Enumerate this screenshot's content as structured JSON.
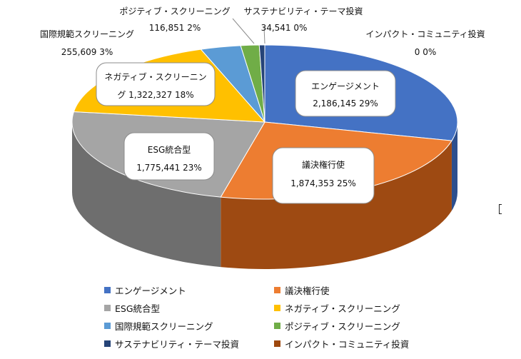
{
  "chart_data": {
    "type": "pie",
    "style": "3d",
    "slices": [
      {
        "label": "エンゲージメント",
        "value_text": "2,186,145",
        "pct_text": "29%",
        "value": 2186145,
        "color": "#4472C4",
        "side": "#2C4F8E"
      },
      {
        "label": "議決権行使",
        "value_text": "1,874,353",
        "pct_text": "25%",
        "value": 1874353,
        "color": "#ED7D31",
        "side": "#9E4A12"
      },
      {
        "label": "ESG統合型",
        "value_text": "1,775,441",
        "pct_text": "23%",
        "value": 1775441,
        "color": "#A5A5A5",
        "side": "#6E6E6E"
      },
      {
        "label": "ネガティブ・スクリーニング",
        "value_text": "1,322,327",
        "pct_text": "18%",
        "value": 1322327,
        "color": "#FFC000",
        "side": "#A37B00"
      },
      {
        "label": "国際規範スクリーニング",
        "value_text": "255,609",
        "pct_text": "3%",
        "value": 255609,
        "color": "#5B9BD5",
        "side": "#35679A"
      },
      {
        "label": "ポジティブ・スクリーニング",
        "value_text": "116,851",
        "pct_text": "2%",
        "value": 116851,
        "color": "#70AD47",
        "side": "#4A7A2B"
      },
      {
        "label": "サステナビリティ・テーマ投資",
        "value_text": "34,541",
        "pct_text": "0%",
        "value": 34541,
        "color": "#264478",
        "side": "#17294A"
      },
      {
        "label": "インパクト・コミュニティ投資",
        "value_text": "0",
        "pct_text": "0%",
        "value": 0,
        "color": "#9E480E",
        "side": "#6A2F08"
      }
    ],
    "legend_position": "bottom"
  }
}
